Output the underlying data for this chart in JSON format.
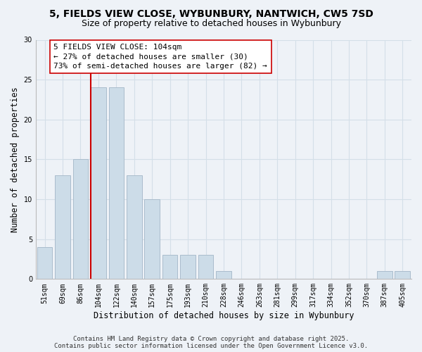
{
  "title": "5, FIELDS VIEW CLOSE, WYBUNBURY, NANTWICH, CW5 7SD",
  "subtitle": "Size of property relative to detached houses in Wybunbury",
  "xlabel": "Distribution of detached houses by size in Wybunbury",
  "ylabel": "Number of detached properties",
  "bar_labels": [
    "51sqm",
    "69sqm",
    "86sqm",
    "104sqm",
    "122sqm",
    "140sqm",
    "157sqm",
    "175sqm",
    "193sqm",
    "210sqm",
    "228sqm",
    "246sqm",
    "263sqm",
    "281sqm",
    "299sqm",
    "317sqm",
    "334sqm",
    "352sqm",
    "370sqm",
    "387sqm",
    "405sqm"
  ],
  "bar_values": [
    4,
    13,
    15,
    24,
    24,
    13,
    10,
    3,
    3,
    3,
    1,
    0,
    0,
    0,
    0,
    0,
    0,
    0,
    0,
    1,
    1
  ],
  "bar_color": "#ccdce8",
  "bar_edge_color": "#aabccc",
  "vline_index": 3,
  "vline_color": "#cc0000",
  "annotation_lines": [
    "5 FIELDS VIEW CLOSE: 104sqm",
    "← 27% of detached houses are smaller (30)",
    "73% of semi-detached houses are larger (82) →"
  ],
  "annotation_box_color": "#ffffff",
  "annotation_box_edge_color": "#cc0000",
  "ylim": [
    0,
    30
  ],
  "yticks": [
    0,
    5,
    10,
    15,
    20,
    25,
    30
  ],
  "grid_color": "#d4dfe8",
  "footer_lines": [
    "Contains HM Land Registry data © Crown copyright and database right 2025.",
    "Contains public sector information licensed under the Open Government Licence v3.0."
  ],
  "bg_color": "#eef2f7",
  "title_fontsize": 10,
  "subtitle_fontsize": 9,
  "axis_label_fontsize": 8.5,
  "tick_fontsize": 7,
  "annotation_fontsize": 8,
  "footer_fontsize": 6.5
}
